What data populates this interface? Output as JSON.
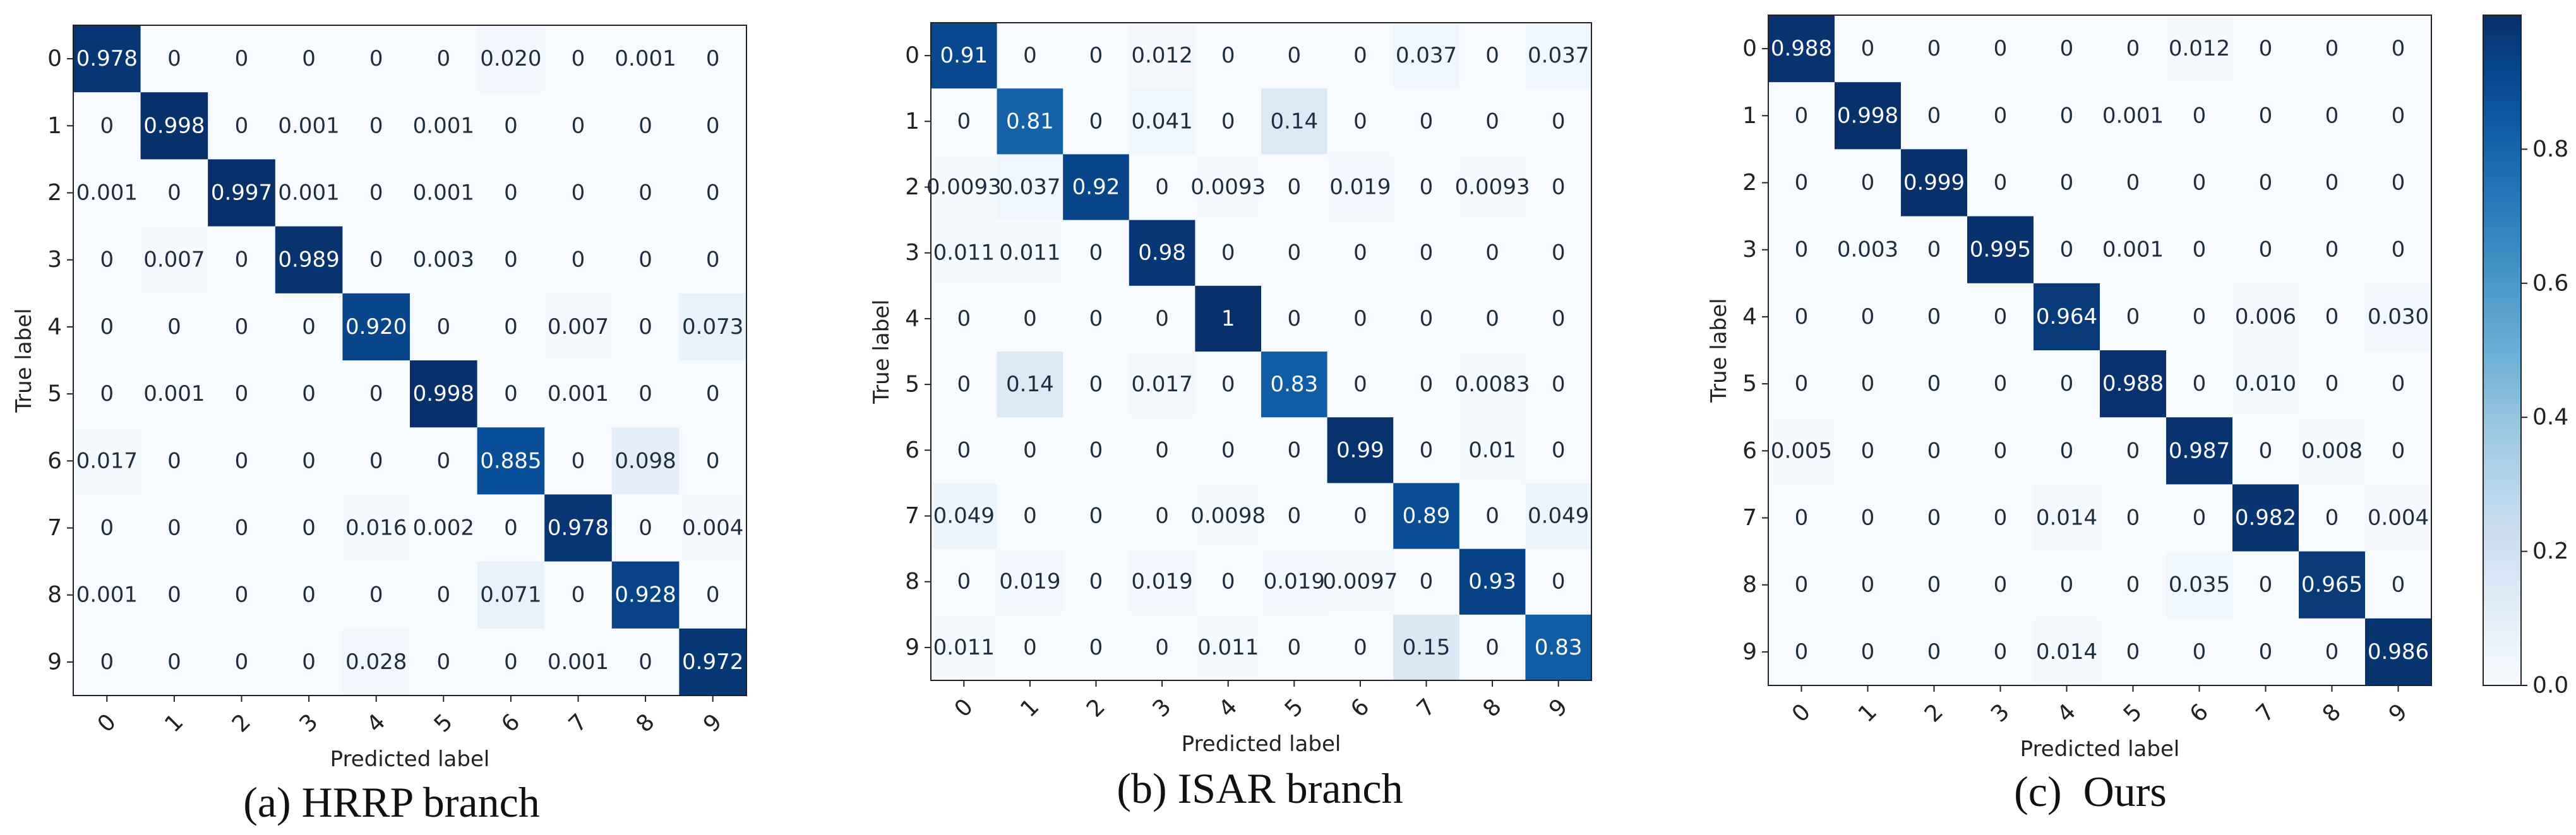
{
  "chart_data": [
    {
      "type": "heatmap",
      "caption": "(a) HRRP branch",
      "xlabel": "Predicted label",
      "ylabel": "True label",
      "x_tick_labels": [
        "0",
        "1",
        "2",
        "3",
        "4",
        "5",
        "6",
        "7",
        "8",
        "9"
      ],
      "y_tick_labels": [
        "0",
        "1",
        "2",
        "3",
        "4",
        "5",
        "6",
        "7",
        "8",
        "9"
      ],
      "cell_labels": [
        [
          "0.978",
          "0",
          "0",
          "0",
          "0",
          "0",
          "0.020",
          "0",
          "0.001",
          "0"
        ],
        [
          "0",
          "0.998",
          "0",
          "0.001",
          "0",
          "0.001",
          "0",
          "0",
          "0",
          "0"
        ],
        [
          "0.001",
          "0",
          "0.997",
          "0.001",
          "0",
          "0.001",
          "0",
          "0",
          "0",
          "0"
        ],
        [
          "0",
          "0.007",
          "0",
          "0.989",
          "0",
          "0.003",
          "0",
          "0",
          "0",
          "0"
        ],
        [
          "0",
          "0",
          "0",
          "0",
          "0.920",
          "0",
          "0",
          "0.007",
          "0",
          "0.073"
        ],
        [
          "0",
          "0.001",
          "0",
          "0",
          "0",
          "0.998",
          "0",
          "0.001",
          "0",
          "0"
        ],
        [
          "0.017",
          "0",
          "0",
          "0",
          "0",
          "0",
          "0.885",
          "0",
          "0.098",
          "0"
        ],
        [
          "0",
          "0",
          "0",
          "0",
          "0.016",
          "0.002",
          "0",
          "0.978",
          "0",
          "0.004"
        ],
        [
          "0.001",
          "0",
          "0",
          "0",
          "0",
          "0",
          "0.071",
          "0",
          "0.928",
          "0"
        ],
        [
          "0",
          "0",
          "0",
          "0",
          "0.028",
          "0",
          "0",
          "0.001",
          "0",
          "0.972"
        ]
      ]
    },
    {
      "type": "heatmap",
      "caption": "(b) ISAR branch",
      "xlabel": "Predicted label",
      "ylabel": "True label",
      "x_tick_labels": [
        "0",
        "1",
        "2",
        "3",
        "4",
        "5",
        "6",
        "7",
        "8",
        "9"
      ],
      "y_tick_labels": [
        "0",
        "1",
        "2",
        "3",
        "4",
        "5",
        "6",
        "7",
        "8",
        "9"
      ],
      "cell_labels": [
        [
          "0.91",
          "0",
          "0",
          "0.012",
          "0",
          "0",
          "0",
          "0.037",
          "0",
          "0.037"
        ],
        [
          "0",
          "0.81",
          "0",
          "0.041",
          "0",
          "0.14",
          "0",
          "0",
          "0",
          "0"
        ],
        [
          "0.0093",
          "0.037",
          "0.92",
          "0",
          "0.0093",
          "0",
          "0.019",
          "0",
          "0.0093",
          "0"
        ],
        [
          "0.011",
          "0.011",
          "0",
          "0.98",
          "0",
          "0",
          "0",
          "0",
          "0",
          "0"
        ],
        [
          "0",
          "0",
          "0",
          "0",
          "1",
          "0",
          "0",
          "0",
          "0",
          "0"
        ],
        [
          "0",
          "0.14",
          "0",
          "0.017",
          "0",
          "0.83",
          "0",
          "0",
          "0.0083",
          "0"
        ],
        [
          "0",
          "0",
          "0",
          "0",
          "0",
          "0",
          "0.99",
          "0",
          "0.01",
          "0"
        ],
        [
          "0.049",
          "0",
          "0",
          "0",
          "0.0098",
          "0",
          "0",
          "0.89",
          "0",
          "0.049"
        ],
        [
          "0",
          "0.019",
          "0",
          "0.019",
          "0",
          "0.019",
          "0.0097",
          "0",
          "0.93",
          "0"
        ],
        [
          "0.011",
          "0",
          "0",
          "0",
          "0.011",
          "0",
          "0",
          "0.15",
          "0",
          "0.83"
        ]
      ]
    },
    {
      "type": "heatmap",
      "caption": "(c)  Ours",
      "xlabel": "Predicted label",
      "ylabel": "True label",
      "x_tick_labels": [
        "0",
        "1",
        "2",
        "3",
        "4",
        "5",
        "6",
        "7",
        "8",
        "9"
      ],
      "y_tick_labels": [
        "0",
        "1",
        "2",
        "3",
        "4",
        "5",
        "6",
        "7",
        "8",
        "9"
      ],
      "cell_labels": [
        [
          "0.988",
          "0",
          "0",
          "0",
          "0",
          "0",
          "0.012",
          "0",
          "0",
          "0"
        ],
        [
          "0",
          "0.998",
          "0",
          "0",
          "0",
          "0.001",
          "0",
          "0",
          "0",
          "0"
        ],
        [
          "0",
          "0",
          "0.999",
          "0",
          "0",
          "0",
          "0",
          "0",
          "0",
          "0"
        ],
        [
          "0",
          "0.003",
          "0",
          "0.995",
          "0",
          "0.001",
          "0",
          "0",
          "0",
          "0"
        ],
        [
          "0",
          "0",
          "0",
          "0",
          "0.964",
          "0",
          "0",
          "0.006",
          "0",
          "0.030"
        ],
        [
          "0",
          "0",
          "0",
          "0",
          "0",
          "0.988",
          "0",
          "0.010",
          "0",
          "0"
        ],
        [
          "0.005",
          "0",
          "0",
          "0",
          "0",
          "0",
          "0.987",
          "0",
          "0.008",
          "0"
        ],
        [
          "0",
          "0",
          "0",
          "0",
          "0.014",
          "0",
          "0",
          "0.982",
          "0",
          "0.004"
        ],
        [
          "0",
          "0",
          "0",
          "0",
          "0",
          "0",
          "0.035",
          "0",
          "0.965",
          "0"
        ],
        [
          "0",
          "0",
          "0",
          "0",
          "0.014",
          "0",
          "0",
          "0",
          "0",
          "0.986"
        ]
      ],
      "colorbar": {
        "range": [
          0,
          1
        ],
        "tick_labels": [
          "0.0",
          "0.2",
          "0.4",
          "0.6",
          "0.8"
        ],
        "colormap": "Blues"
      }
    }
  ]
}
